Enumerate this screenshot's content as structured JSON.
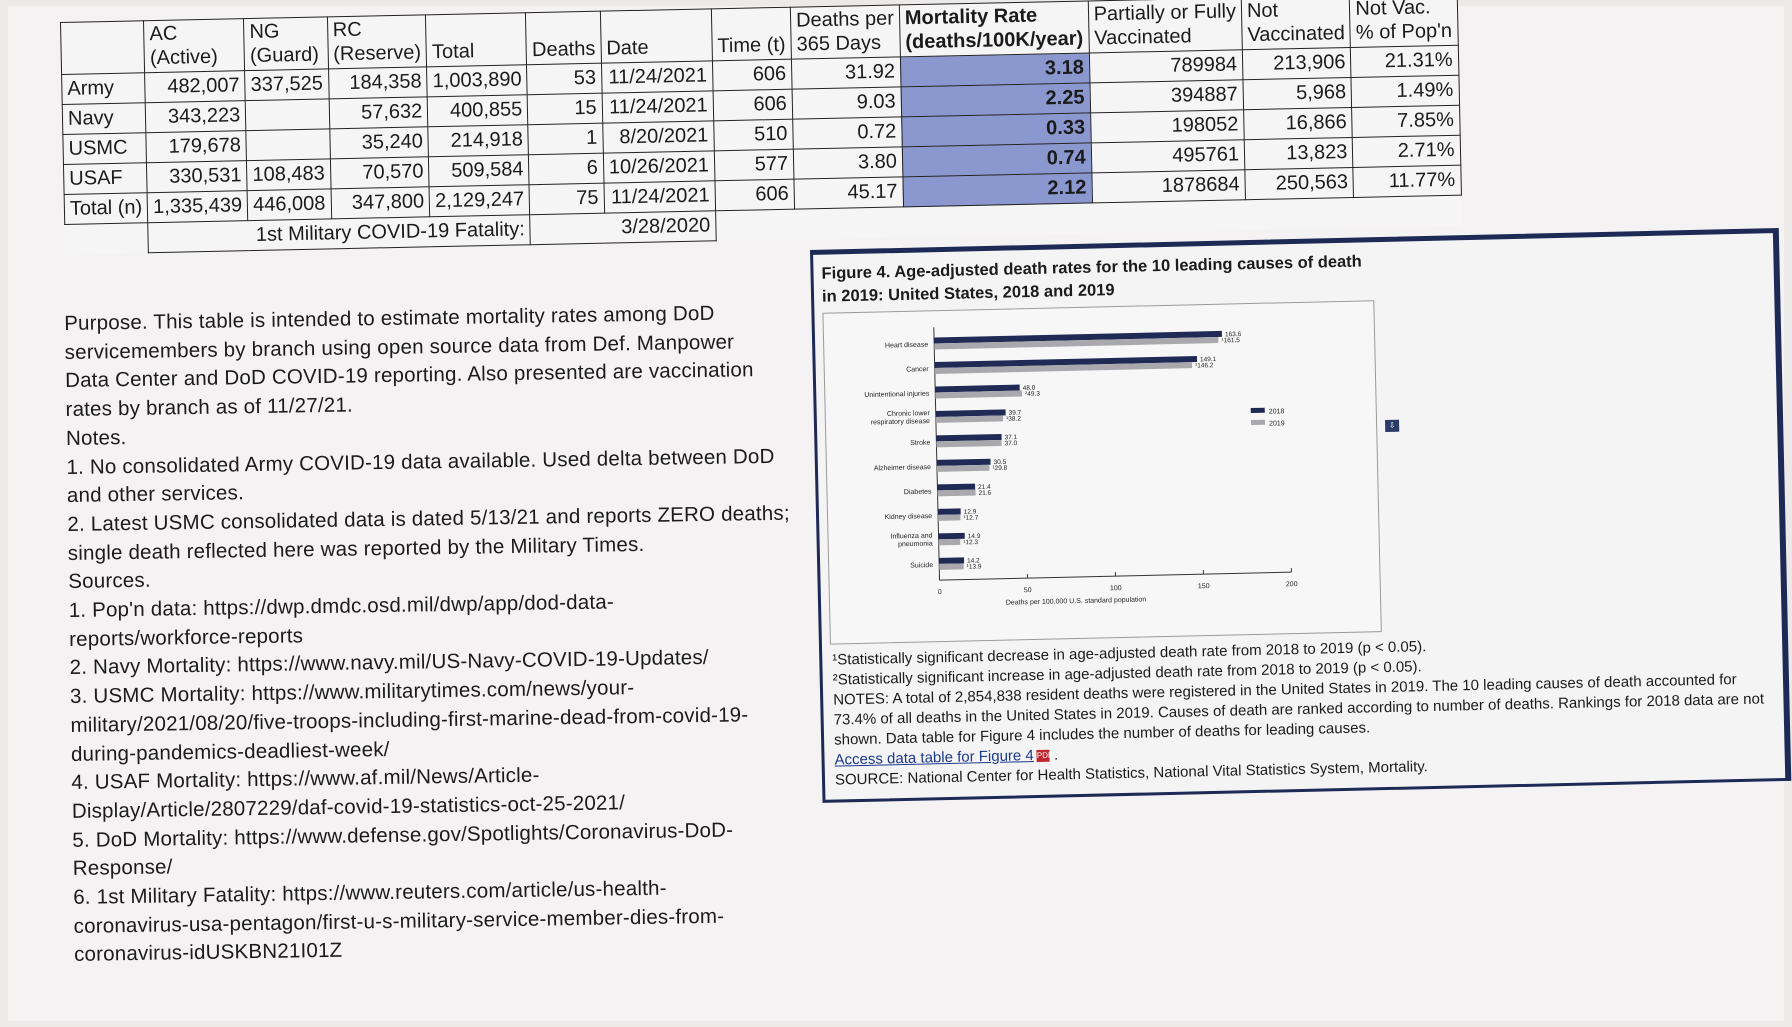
{
  "table": {
    "headers": [
      {
        "line1": "",
        "line2": ""
      },
      {
        "line1": "AC",
        "line2": "(Active)"
      },
      {
        "line1": "NG",
        "line2": "(Guard)"
      },
      {
        "line1": "RC",
        "line2": "(Reserve)"
      },
      {
        "line1": "",
        "line2": "Total"
      },
      {
        "line1": "",
        "line2": "Deaths"
      },
      {
        "line1": "",
        "line2": "Date"
      },
      {
        "line1": "",
        "line2": "Time (t)"
      },
      {
        "line1": "Deaths per",
        "line2": "365 Days"
      },
      {
        "line1": "Mortality Rate",
        "line2": "(deaths/100K/year)"
      },
      {
        "line1": "Partially or Fully",
        "line2": "Vaccinated"
      },
      {
        "line1": "Not",
        "line2": "Vaccinated"
      },
      {
        "line1": "Not Vac.",
        "line2": "% of Pop'n"
      }
    ],
    "rows": [
      [
        "Army",
        "482,007",
        "337,525",
        "184,358",
        "1,003,890",
        "53",
        "11/24/2021",
        "606",
        "31.92",
        "3.18",
        "789984",
        "213,906",
        "21.31%"
      ],
      [
        "Navy",
        "343,223",
        "",
        "57,632",
        "400,855",
        "15",
        "11/24/2021",
        "606",
        "9.03",
        "2.25",
        "394887",
        "5,968",
        "1.49%"
      ],
      [
        "USMC",
        "179,678",
        "",
        "35,240",
        "214,918",
        "1",
        "8/20/2021",
        "510",
        "0.72",
        "0.33",
        "198052",
        "16,866",
        "7.85%"
      ],
      [
        "USAF",
        "330,531",
        "108,483",
        "70,570",
        "509,584",
        "6",
        "10/26/2021",
        "577",
        "3.80",
        "0.74",
        "495761",
        "13,823",
        "2.71%"
      ],
      [
        "Total (n)",
        "1,335,439",
        "446,008",
        "347,800",
        "2,129,247",
        "75",
        "11/24/2021",
        "606",
        "45.17",
        "2.12",
        "1878684",
        "250,563",
        "11.77%"
      ]
    ],
    "footer_label": "1st Military COVID-19 Fatality:",
    "footer_date": "3/28/2020",
    "highlight_color": "#8a98cf"
  },
  "left_text": [
    "Purpose. This table is intended to estimate mortality rates among DoD",
    "servicemembers by branch using open source data from Def. Manpower",
    "Data Center and DoD COVID-19 reporting. Also presented are vaccination",
    "rates by branch as of 11/27/21.",
    "Notes.",
    "1. No consolidated Army COVID-19 data available. Used delta between DoD",
    "and other services.",
    "2. Latest USMC consolidated data is dated 5/13/21 and reports ZERO deaths;",
    "single death reflected here was reported by the Military Times.",
    "Sources.",
    "1. Pop'n data: https://dwp.dmdc.osd.mil/dwp/app/dod-data-",
    "reports/workforce-reports",
    "2. Navy Mortality: https://www.navy.mil/US-Navy-COVID-19-Updates/",
    "3. USMC Mortality: https://www.militarytimes.com/news/your-",
    "military/2021/08/20/five-troops-including-first-marine-dead-from-covid-19-",
    "during-pandemics-deadliest-week/",
    "4. USAF Mortality: https://www.af.mil/News/Article-",
    "Display/Article/2807229/daf-covid-19-statistics-oct-25-2021/",
    "5. DoD Mortality: https://www.defense.gov/Spotlights/Coronavirus-DoD-",
    "Response/",
    "6. 1st Military Fatality: https://www.reuters.com/article/us-health-",
    "coronavirus-usa-pentagon/first-u-s-military-service-member-dies-from-",
    "coronavirus-idUSKBN21I01Z"
  ],
  "figure": {
    "title_line1": "Figure 4. Age-adjusted death rates for the 10 leading causes of death",
    "title_line2": "in 2019: United States, 2018 and 2019",
    "note1": "¹Statistically significant decrease in age-adjusted death rate from 2018 to 2019 (p < 0.05).",
    "note2": "²Statistically significant increase in age-adjusted death rate from 2018 to 2019 (p < 0.05).",
    "notes_text": "NOTES: A total of 2,854,838 resident deaths were registered in the United States in 2019. The 10 leading causes of death accounted for 73.4% of all deaths in the United States in 2019. Causes of death are ranked according to number of deaths. Rankings for 2018 data are not shown. Data table for Figure 4 includes the number of deaths for leading causes.",
    "link_text": "Access data table for Figure 4",
    "source_text": "SOURCE: National Center for Health Statistics, National Vital Statistics System, Mortality."
  },
  "chart_data": {
    "type": "bar",
    "orientation": "horizontal",
    "categories": [
      "Heart disease",
      "Cancer",
      "Unintentional injuries",
      "Chronic lower respiratory disease",
      "Stroke",
      "Alzheimer disease",
      "Diabetes",
      "Kidney disease",
      "Influenza and pneumonia",
      "Suicide"
    ],
    "series": [
      {
        "name": "2018",
        "values": [
          163.6,
          149.1,
          48.0,
          39.7,
          37.1,
          30.5,
          21.4,
          12.9,
          14.9,
          14.2
        ],
        "labels": [
          "163.6",
          "149.1",
          "48.0",
          "39.7",
          "37.1",
          "30.5",
          "21.4",
          "12.9",
          "14.9",
          "14.2"
        ],
        "color": "#1f2a55"
      },
      {
        "name": "2019",
        "values": [
          161.5,
          146.2,
          49.3,
          38.2,
          37.0,
          29.8,
          21.6,
          12.7,
          12.3,
          13.9
        ],
        "labels": [
          "¹161.5",
          "¹146.2",
          "²49.3",
          "¹38.2",
          "37.0",
          "¹29.8",
          "21.6",
          "¹12.7",
          "¹12.3",
          "¹13.9"
        ],
        "color": "#a9a9ad"
      }
    ],
    "xlabel": "Deaths per 100,000 U.S. standard population",
    "x_ticks": [
      0,
      50,
      100,
      150,
      200
    ],
    "xlim": [
      0,
      200
    ],
    "legend_position": "right"
  }
}
